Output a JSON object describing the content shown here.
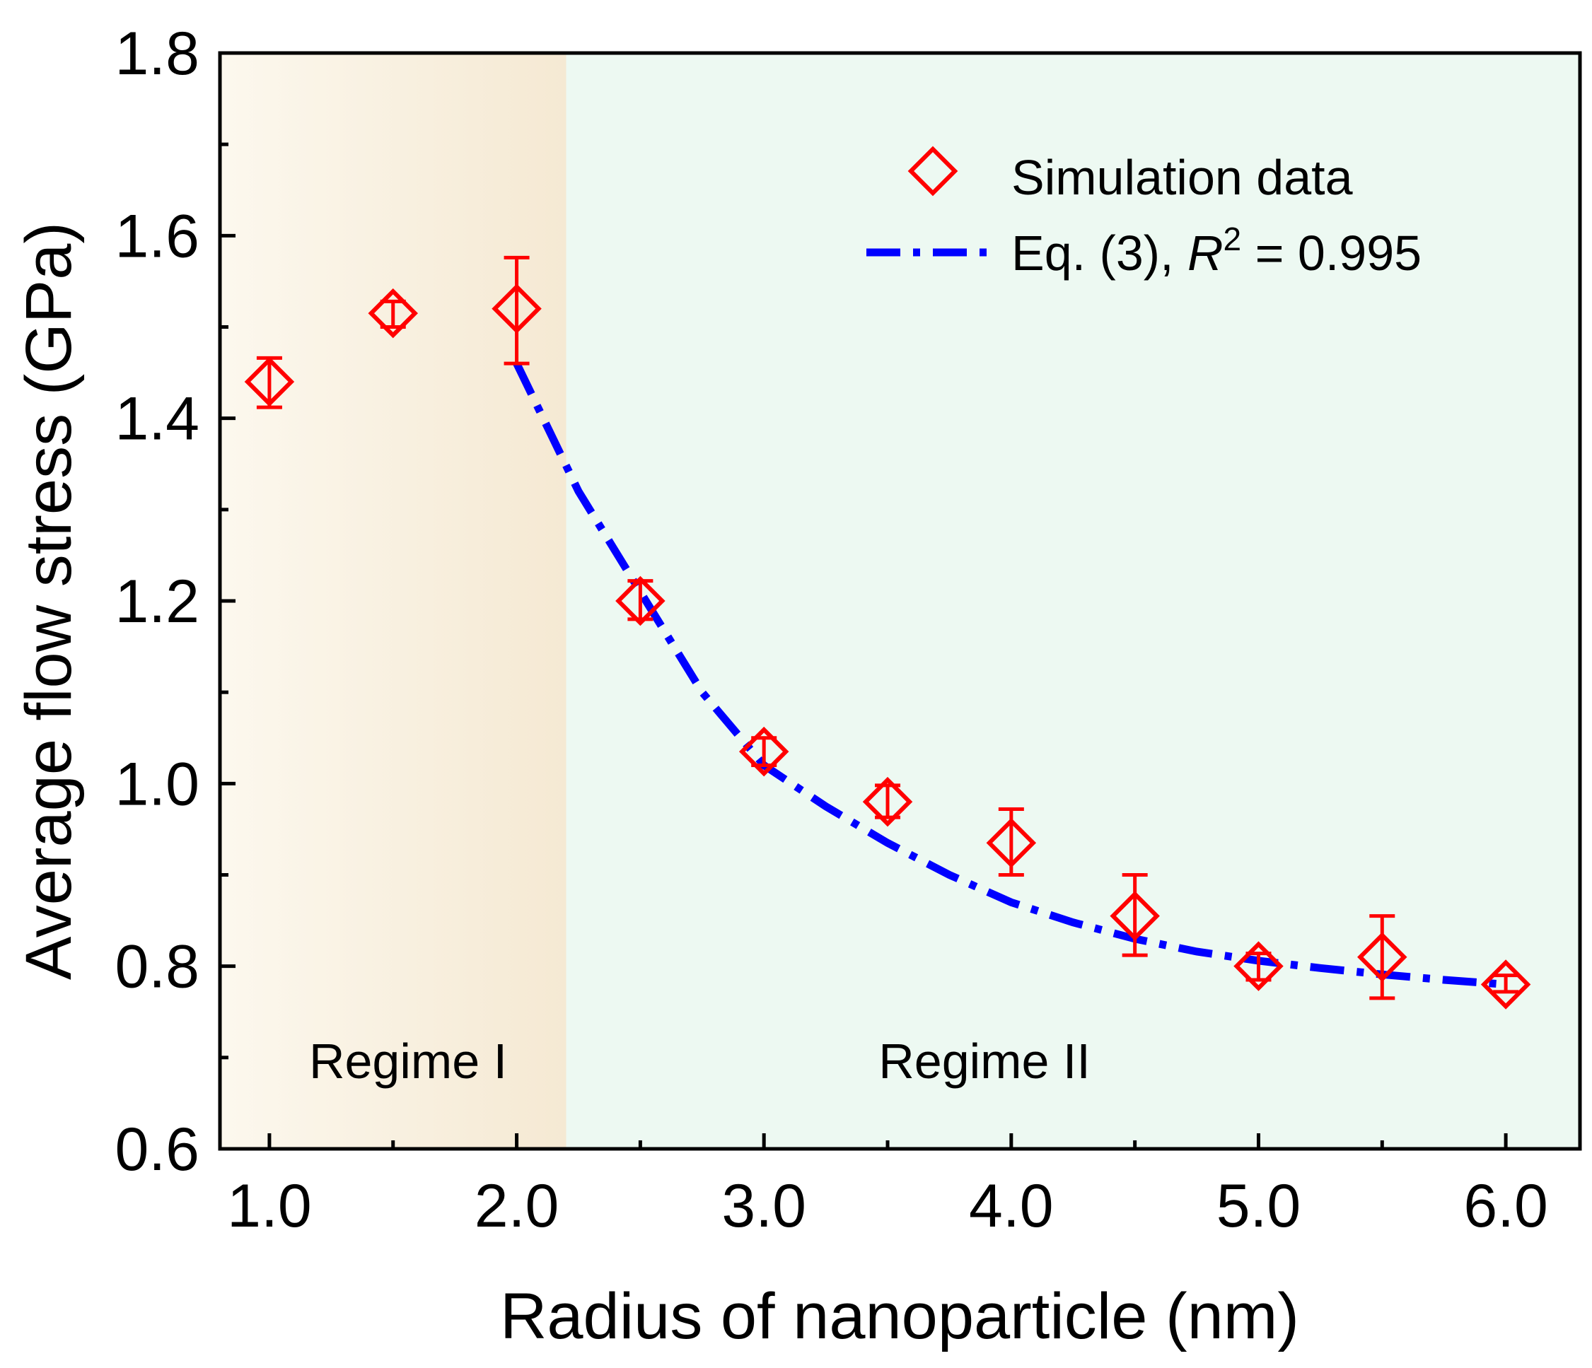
{
  "chart_data": {
    "type": "scatter",
    "title": "",
    "xlabel": "Radius of nanoparticle (nm)",
    "ylabel": "Average flow stress (GPa)",
    "xlim": [
      0.8,
      6.3
    ],
    "ylim": [
      0.6,
      1.8
    ],
    "x_ticks": [
      1.0,
      2.0,
      3.0,
      4.0,
      5.0,
      6.0
    ],
    "x_tick_labels": [
      "1.0",
      "2.0",
      "3.0",
      "4.0",
      "5.0",
      "6.0"
    ],
    "y_ticks": [
      0.6,
      0.8,
      1.0,
      1.2,
      1.4,
      1.6,
      1.8
    ],
    "y_tick_labels": [
      "0.6",
      "0.8",
      "1.0",
      "1.2",
      "1.4",
      "1.6",
      "1.8"
    ],
    "grid": false,
    "legend_position": "top-right",
    "regions": [
      {
        "label": "Regime I",
        "x_start": 0.8,
        "x_end": 2.2,
        "color": "#f6ecd8"
      },
      {
        "label": "Regime II",
        "x_start": 2.2,
        "x_end": 6.3,
        "color": "#edf9f2"
      }
    ],
    "series": [
      {
        "name": "Simulation data",
        "kind": "markers",
        "marker": "diamond",
        "color": "#ff0000",
        "x": [
          1.0,
          1.5,
          2.0,
          2.5,
          3.0,
          3.5,
          4.0,
          4.5,
          5.0,
          5.5,
          6.0
        ],
        "y": [
          1.44,
          1.515,
          1.52,
          1.2,
          1.035,
          0.98,
          0.935,
          0.855,
          0.8,
          0.81,
          0.78
        ],
        "err_low": [
          1.412,
          1.5,
          1.46,
          1.18,
          1.02,
          0.963,
          0.9,
          0.812,
          0.785,
          0.765,
          0.772
        ],
        "err_high": [
          1.466,
          1.528,
          1.576,
          1.222,
          1.05,
          0.998,
          0.972,
          0.9,
          0.814,
          0.855,
          0.79
        ]
      },
      {
        "name": "Eq. (3), R² = 0.995",
        "kind": "line",
        "line_style": "dash-dot",
        "color": "#0000ff",
        "x": [
          2.0,
          2.25,
          2.5,
          2.75,
          3.0,
          3.25,
          3.5,
          3.75,
          4.0,
          4.25,
          4.5,
          4.75,
          5.0,
          5.25,
          5.5,
          5.75,
          6.0
        ],
        "y": [
          1.46,
          1.32,
          1.21,
          1.1,
          1.02,
          0.975,
          0.935,
          0.9,
          0.87,
          0.848,
          0.83,
          0.816,
          0.806,
          0.798,
          0.791,
          0.785,
          0.78
        ]
      }
    ],
    "legend": {
      "marker_label": "Simulation data",
      "line_label_prefix": "Eq. (3), ",
      "line_label_var": "R",
      "line_label_sup": "2",
      "line_label_suffix": " = 0.995"
    }
  }
}
